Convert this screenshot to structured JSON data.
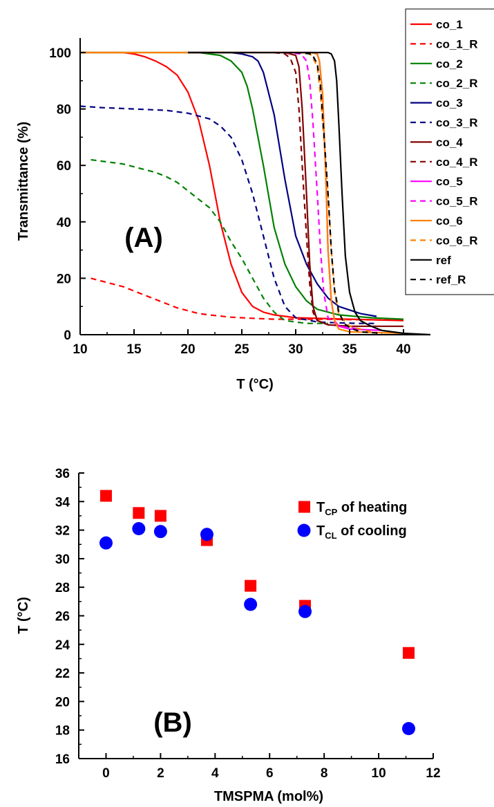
{
  "chart_data": [
    {
      "type": "line",
      "panel_label": "(A)",
      "xlabel": "T (°C)",
      "ylabel": "Transmittance (%)",
      "xlim": [
        10,
        42.5
      ],
      "ylim": [
        0,
        102
      ],
      "xticks": [
        10,
        15,
        20,
        25,
        30,
        35,
        40
      ],
      "yticks": [
        0,
        20,
        40,
        60,
        80,
        100
      ],
      "grid": false,
      "legend_position": "right",
      "series": [
        {
          "name": "co_1",
          "color": "#ff0000",
          "dash": "solid",
          "x": [
            10,
            14,
            15,
            16,
            17,
            18,
            19,
            20,
            21,
            22,
            23,
            24,
            25,
            26,
            27,
            28,
            30,
            35,
            40
          ],
          "y": [
            100,
            100,
            99.5,
            98.5,
            97,
            95,
            92,
            86,
            76,
            60,
            40,
            25,
            15,
            10,
            8,
            7,
            6,
            5.5,
            5
          ]
        },
        {
          "name": "co_1_R",
          "color": "#ff0000",
          "dash": "dashed",
          "x": [
            11,
            12,
            13,
            14,
            15,
            16,
            17,
            18,
            19,
            20,
            21,
            22,
            24,
            26,
            28,
            32,
            36,
            40
          ],
          "y": [
            20,
            19,
            18,
            17,
            15.5,
            14,
            12.5,
            11,
            9.5,
            8.5,
            7.5,
            7,
            6.2,
            5.8,
            5.5,
            5.5,
            5.3,
            5.2
          ]
        },
        {
          "name": "co_2",
          "color": "#008000",
          "dash": "solid",
          "x": [
            10,
            21,
            22,
            23,
            24,
            25,
            25.5,
            26,
            27,
            28,
            29,
            30,
            31,
            32,
            34,
            37,
            40
          ],
          "y": [
            100,
            100,
            99.5,
            99,
            97,
            93,
            88,
            80,
            60,
            38,
            25,
            17,
            12,
            9,
            7,
            6,
            5.5
          ]
        },
        {
          "name": "co_2_R",
          "color": "#008000",
          "dash": "dashed",
          "x": [
            11,
            12,
            13,
            14,
            15,
            16,
            17,
            18,
            19,
            20,
            21,
            22,
            23,
            24,
            25,
            26,
            27,
            28,
            29,
            30,
            31,
            32,
            33
          ],
          "y": [
            62,
            61.5,
            61,
            60.5,
            59.5,
            58.5,
            57.5,
            56,
            54,
            51,
            48,
            45,
            40,
            33,
            27,
            20,
            13,
            8,
            5,
            4.5,
            4,
            4,
            4
          ]
        },
        {
          "name": "co_3",
          "color": "#000080",
          "dash": "solid",
          "x": [
            20,
            24,
            25,
            26,
            26.5,
            27,
            28,
            29,
            30,
            31,
            32,
            33,
            34,
            36,
            37.5
          ],
          "y": [
            100,
            100,
            99.5,
            98.5,
            97,
            93,
            78,
            55,
            35,
            25,
            18,
            13,
            10,
            7.5,
            6.5
          ]
        },
        {
          "name": "co_3_R",
          "color": "#000080",
          "dash": "dashed",
          "x": [
            10,
            12,
            15,
            18,
            20,
            21,
            22,
            23,
            24,
            25,
            26,
            27,
            28,
            29,
            30,
            32,
            34,
            36,
            37.5
          ],
          "y": [
            81,
            80.5,
            80,
            79.5,
            78.5,
            77.5,
            76.5,
            74,
            70,
            62,
            50,
            35,
            20,
            10,
            6,
            4.5,
            4.2,
            4,
            4
          ]
        },
        {
          "name": "co_4",
          "color": "#800000",
          "dash": "solid",
          "x": [
            20,
            29,
            30,
            30.3,
            30.6,
            31,
            31.3,
            31.6,
            32,
            33,
            35,
            40
          ],
          "y": [
            100,
            100,
            99,
            95,
            80,
            50,
            25,
            10,
            5,
            3.5,
            3,
            3
          ]
        },
        {
          "name": "co_4_R",
          "color": "#800000",
          "dash": "dashed",
          "x": [
            28,
            29,
            29.5,
            30,
            30.3,
            30.6,
            31,
            31.3,
            31.6,
            32,
            33,
            35
          ],
          "y": [
            100,
            99.5,
            98,
            93,
            80,
            60,
            35,
            18,
            8,
            5,
            3.5,
            3
          ]
        },
        {
          "name": "co_5",
          "color": "#ff00ff",
          "dash": "solid",
          "x": [
            29,
            31.5,
            32,
            32.2,
            32.5,
            32.8,
            33,
            33.3,
            33.6,
            34,
            35,
            38
          ],
          "y": [
            100,
            100,
            99.5,
            97,
            85,
            55,
            30,
            12,
            5,
            3,
            2,
            1.5
          ]
        },
        {
          "name": "co_5_R",
          "color": "#ff00ff",
          "dash": "dashed",
          "x": [
            29,
            30.5,
            31,
            31.3,
            31.6,
            32,
            32.3,
            32.6,
            33,
            34,
            36
          ],
          "y": [
            100,
            99.5,
            97,
            90,
            75,
            50,
            30,
            15,
            6,
            3,
            2
          ]
        },
        {
          "name": "co_6",
          "color": "#ff8000",
          "dash": "solid",
          "x": [
            10,
            31.5,
            32,
            32.2,
            32.5,
            32.8,
            33,
            33.3,
            33.6,
            34,
            35,
            40
          ],
          "y": [
            100,
            100,
            99.5,
            97,
            85,
            55,
            30,
            12,
            5,
            2,
            1,
            0.5
          ]
        },
        {
          "name": "co_6_R",
          "color": "#ff8000",
          "dash": "dashed",
          "x": [
            31,
            31.5,
            32,
            32.3,
            32.6,
            33,
            33.3,
            33.6,
            34,
            35,
            37
          ],
          "y": [
            100,
            99,
            95,
            85,
            70,
            50,
            30,
            15,
            7,
            3,
            1
          ]
        },
        {
          "name": "ref",
          "color": "#000000",
          "dash": "solid",
          "x": [
            20,
            33,
            33.3,
            33.6,
            33.8,
            34,
            34.3,
            34.6,
            35,
            35.5,
            36,
            37,
            38,
            40,
            42.5
          ],
          "y": [
            100,
            100,
            99.5,
            97,
            90,
            75,
            50,
            28,
            15,
            8,
            5,
            3,
            1.5,
            0.5,
            0
          ]
        },
        {
          "name": "ref_R",
          "color": "#000000",
          "dash": "dashed",
          "x": [
            30,
            31.5,
            32,
            32.3,
            32.6,
            33,
            33.3,
            33.6,
            34,
            34.5,
            35,
            36,
            38
          ],
          "y": [
            100,
            99.5,
            96,
            88,
            72,
            50,
            30,
            16,
            8,
            4,
            2.5,
            1,
            0.5
          ]
        }
      ]
    },
    {
      "type": "scatter",
      "panel_label": "(B)",
      "xlabel": "TMSPMA (mol%)",
      "ylabel": "T (°C)",
      "xlim": [
        -1,
        12
      ],
      "ylim": [
        16,
        36
      ],
      "xticks": [
        0,
        2,
        4,
        6,
        8,
        10,
        12
      ],
      "yticks": [
        16,
        18,
        20,
        22,
        24,
        26,
        28,
        30,
        32,
        34,
        36
      ],
      "grid": false,
      "legend_position": "top-right",
      "series": [
        {
          "name_main": "T",
          "name_sub": "CP",
          "name_rest": " of heating",
          "color": "#ff0000",
          "marker": "square",
          "x": [
            0,
            1.2,
            2,
            3.7,
            5.3,
            7.3,
            11.1
          ],
          "y": [
            34.4,
            33.2,
            33.0,
            31.3,
            28.1,
            26.7,
            23.4
          ]
        },
        {
          "name_main": "T",
          "name_sub": "CL",
          "name_rest": " of cooling",
          "color": "#0000ff",
          "marker": "circle",
          "x": [
            0,
            1.2,
            2,
            3.7,
            5.3,
            7.3,
            11.1
          ],
          "y": [
            31.1,
            32.1,
            31.9,
            31.7,
            26.8,
            26.3,
            18.1
          ]
        }
      ]
    }
  ]
}
